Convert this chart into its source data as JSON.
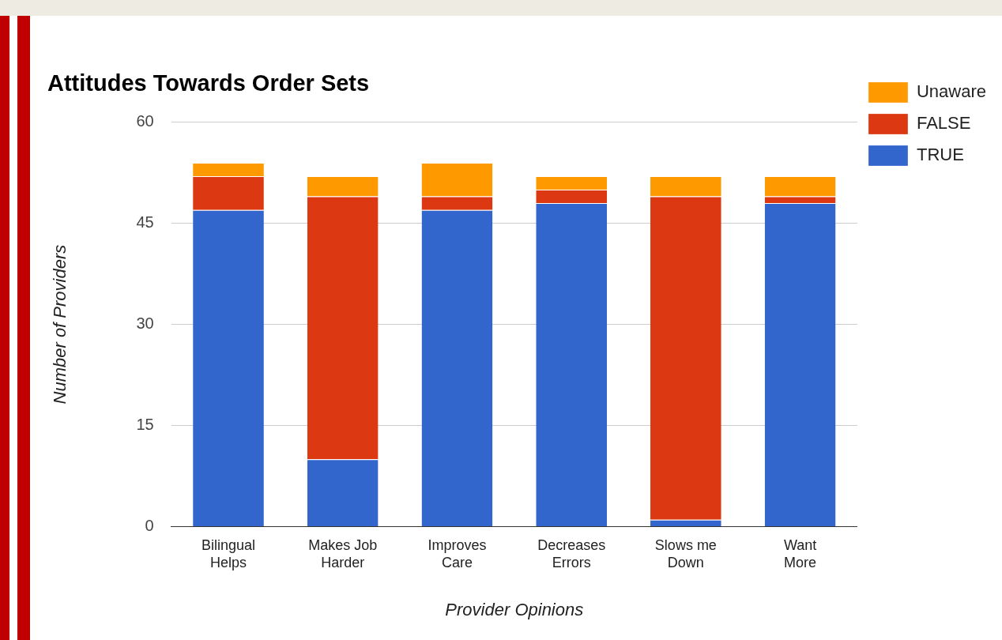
{
  "chart_data": {
    "type": "bar",
    "title": "Attitudes Towards Order Sets",
    "xlabel": "Provider Opinions",
    "ylabel": "Number of Providers",
    "categories": [
      "Bilingual Helps",
      "Makes Job Harder",
      "Improves Care",
      "Decreases Errors",
      "Slows me Down",
      "Want More"
    ],
    "series": [
      {
        "name": "TRUE",
        "color": "#3366cc",
        "values": [
          47,
          10,
          47,
          48,
          1,
          48
        ]
      },
      {
        "name": "FALSE",
        "color": "#dc3912",
        "values": [
          5,
          39,
          2,
          2,
          48,
          1
        ]
      },
      {
        "name": "Unaware",
        "color": "#ff9900",
        "values": [
          2,
          3,
          5,
          2,
          3,
          3
        ]
      }
    ],
    "stacked": true,
    "ylim": [
      0,
      60
    ],
    "yticks": [
      0,
      15,
      30,
      45,
      60
    ],
    "grid": "y",
    "legend": "top right"
  }
}
